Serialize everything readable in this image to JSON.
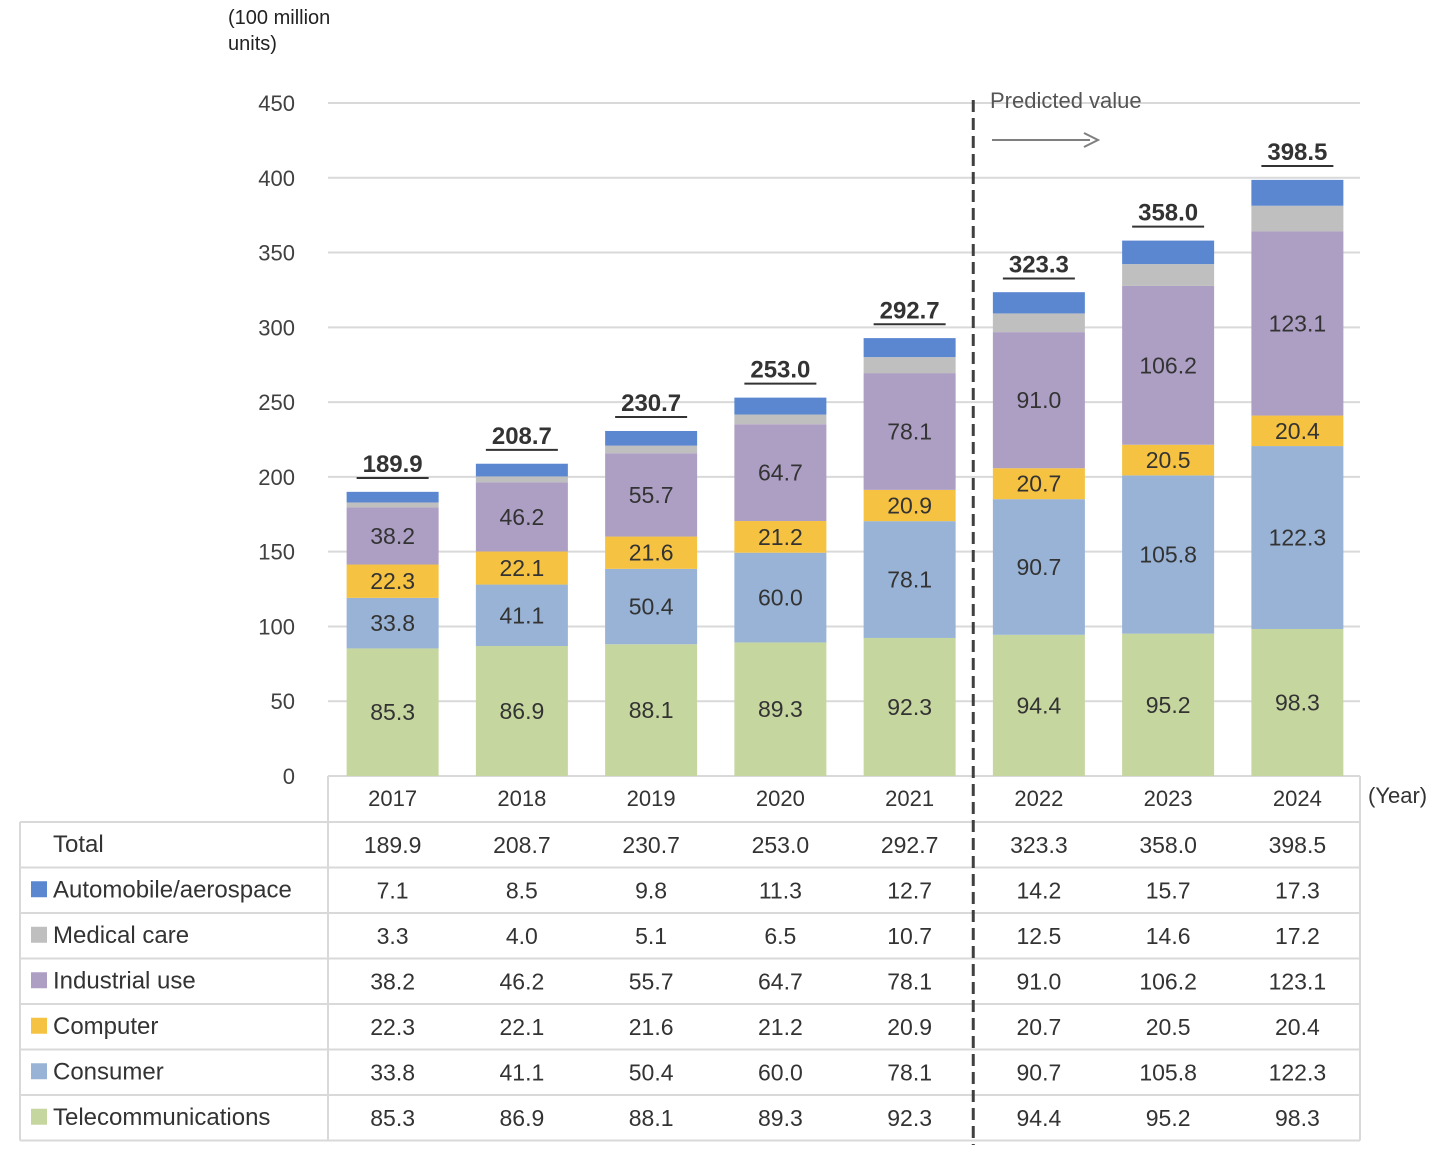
{
  "chart_data": {
    "type": "bar",
    "stacked": true,
    "y_unit_label": "(100 million\nunits)",
    "x_unit_label": "(Year)",
    "ylim": [
      0,
      450
    ],
    "yticks": [
      0,
      50,
      100,
      150,
      200,
      250,
      300,
      350,
      400,
      450
    ],
    "grid": true,
    "categories": [
      "2017",
      "2018",
      "2019",
      "2020",
      "2021",
      "2022",
      "2023",
      "2024"
    ],
    "predicted_from": "2022",
    "predicted_label": "Predicted value",
    "totals": [
      189.9,
      208.7,
      230.7,
      253.0,
      292.7,
      323.3,
      358.0,
      398.5
    ],
    "total_row_label": "Total",
    "series": [
      {
        "name": "Telecommunications",
        "color": "#c6d69f",
        "values": [
          85.3,
          86.9,
          88.1,
          89.3,
          92.3,
          94.4,
          95.2,
          98.3
        ]
      },
      {
        "name": "Consumer",
        "color": "#98b3d6",
        "values": [
          33.8,
          41.1,
          50.4,
          60.0,
          78.1,
          90.7,
          105.8,
          122.3
        ]
      },
      {
        "name": "Computer",
        "color": "#f5c242",
        "values": [
          22.3,
          22.1,
          21.6,
          21.2,
          20.9,
          20.7,
          20.5,
          20.4
        ]
      },
      {
        "name": "Industrial use",
        "color": "#ad9fc4",
        "values": [
          38.2,
          46.2,
          55.7,
          64.7,
          78.1,
          91.0,
          106.2,
          123.1
        ]
      },
      {
        "name": "Medical care",
        "color": "#bfbfbf",
        "values": [
          3.3,
          4.0,
          5.1,
          6.5,
          10.7,
          12.5,
          14.6,
          17.2
        ]
      },
      {
        "name": "Automobile/aerospace",
        "color": "#5b87d1",
        "values": [
          7.1,
          8.5,
          9.8,
          11.3,
          12.7,
          14.2,
          15.7,
          17.3
        ]
      }
    ],
    "table_rows": [
      "Total",
      "Automobile/aerospace",
      "Medical care",
      "Industrial use",
      "Computer",
      "Consumer",
      "Telecommunications"
    ]
  }
}
